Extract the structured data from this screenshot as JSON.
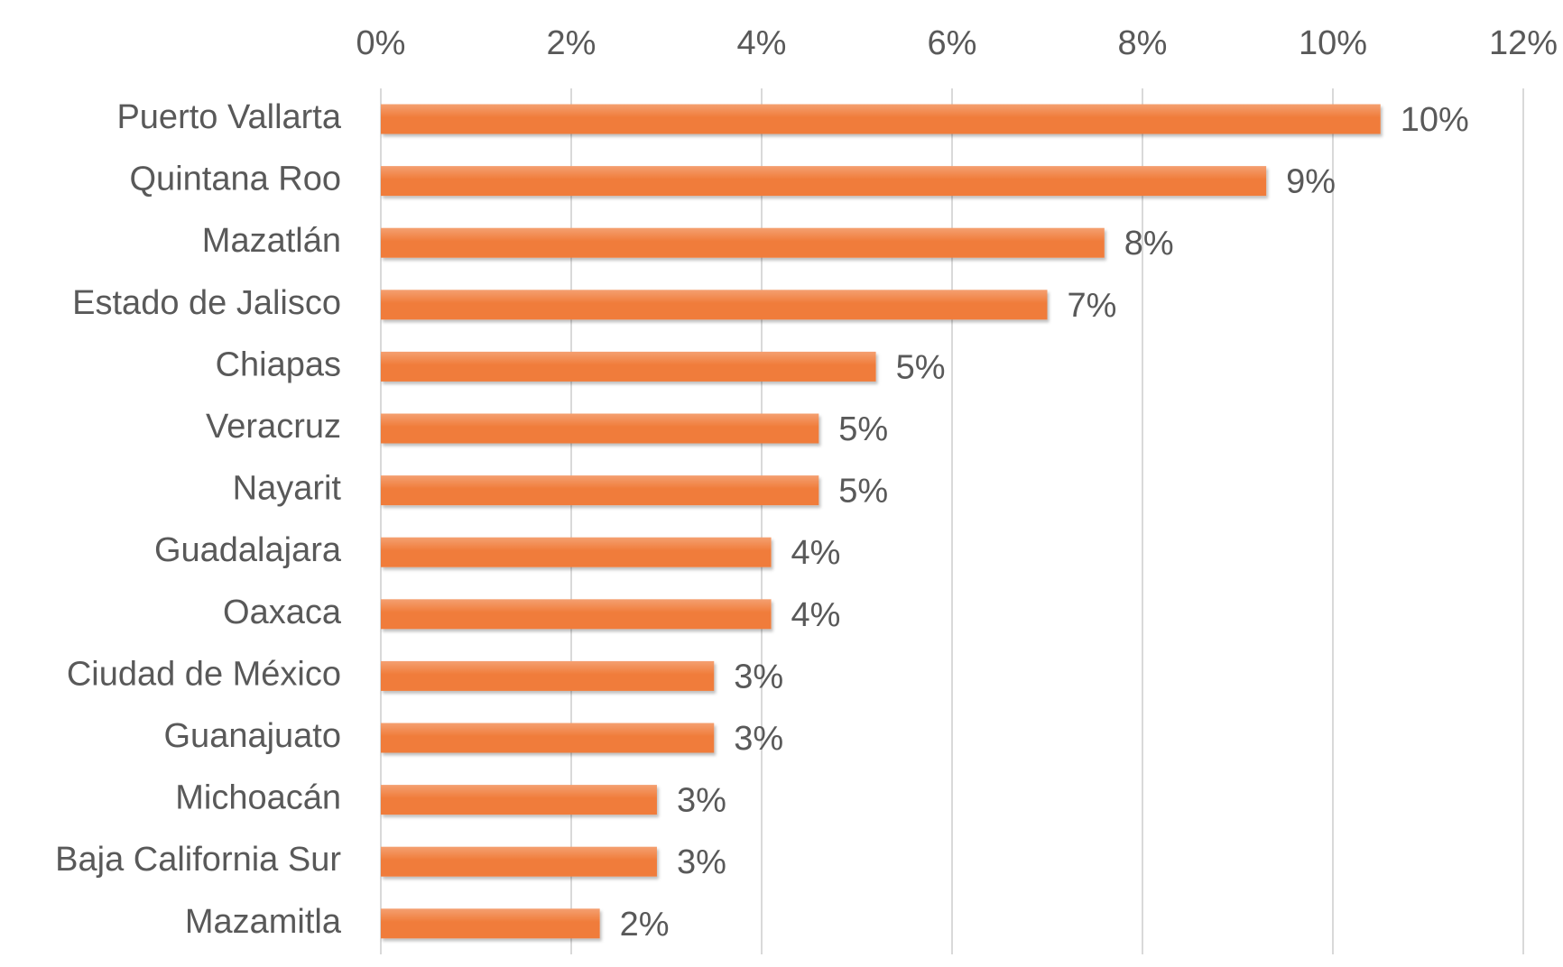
{
  "chart_data": {
    "type": "bar",
    "orientation": "horizontal",
    "categories": [
      "Puerto Vallarta",
      "Quintana Roo",
      "Mazatlán",
      "Estado de Jalisco",
      "Chiapas",
      "Veracruz ",
      "Nayarit",
      "Guadalajara",
      "Oaxaca",
      "Ciudad de México",
      "Guanajuato",
      "Michoacán",
      "Baja California Sur",
      "Mazamitla"
    ],
    "values": [
      10.5,
      9.3,
      7.6,
      7.0,
      5.2,
      4.6,
      4.6,
      4.1,
      4.1,
      3.5,
      3.5,
      2.9,
      2.9,
      2.3
    ],
    "data_labels": [
      "10%",
      "9%",
      "8%",
      "7%",
      "5%",
      "5%",
      "5%",
      "4%",
      "4%",
      "3%",
      "3%",
      "3%",
      "3%",
      "2%"
    ],
    "xlim": [
      0,
      12
    ],
    "x_ticks": [
      0,
      2,
      4,
      6,
      8,
      10,
      12
    ],
    "x_tick_labels": [
      "0%",
      "2%",
      "4%",
      "6%",
      "8%",
      "10%",
      "12%"
    ],
    "x_axis_position": "top",
    "grid": true,
    "legend": "none",
    "title": "",
    "xlabel": "",
    "ylabel": "",
    "colors": {
      "bar": "#f07c3a",
      "bar_highlight": "#f4a071",
      "grid": "#d9d9d9",
      "text": "#595959"
    }
  }
}
